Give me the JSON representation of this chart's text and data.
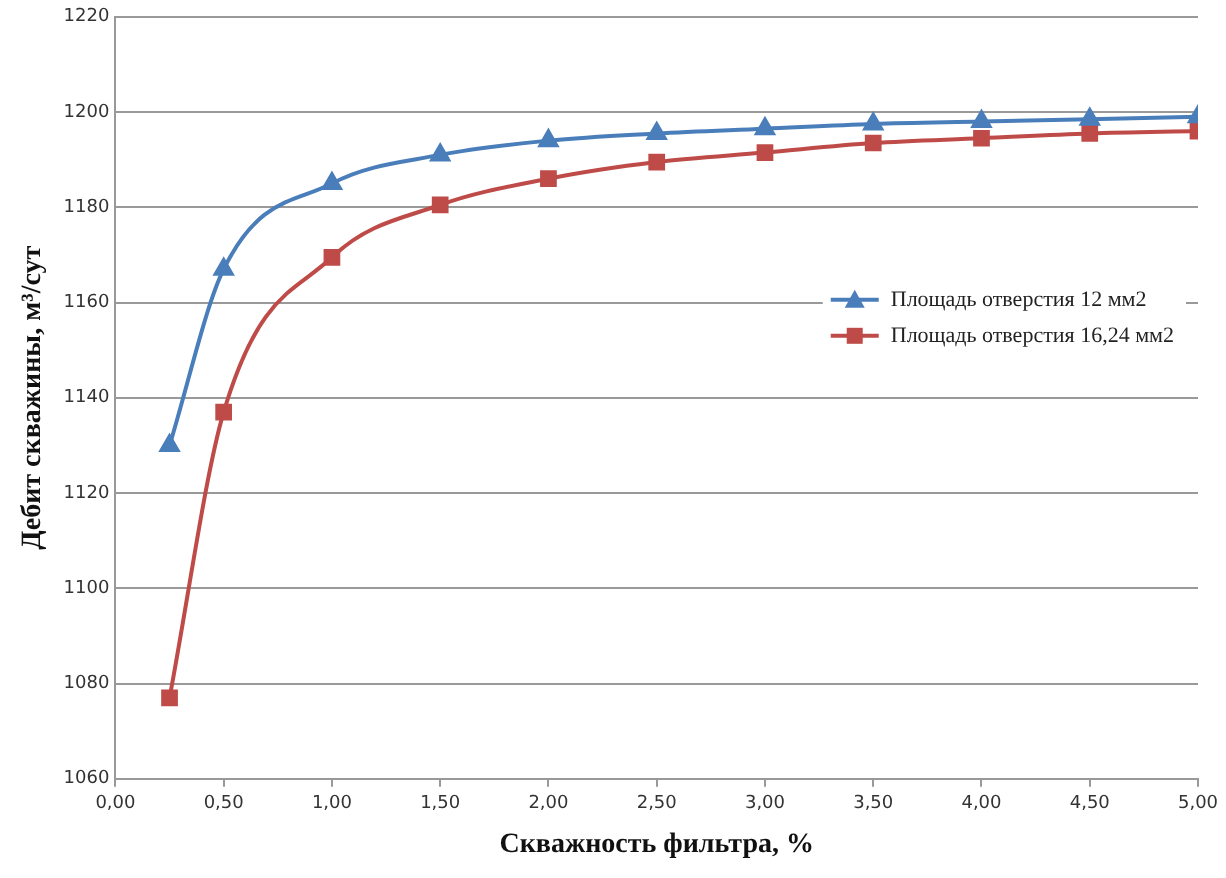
{
  "chart_data": {
    "type": "line",
    "xlabel": "Скважность фильтра, %",
    "ylabel": "Дебит скважины, м³/сут",
    "x": [
      0.25,
      0.5,
      1,
      1.5,
      2,
      2.5,
      3,
      3.5,
      4,
      4.5,
      5
    ],
    "series": [
      {
        "name": "Площадь отверстия 12 мм2",
        "color": "#4a7ebb",
        "marker": "triangle",
        "values": [
          1130,
          1167,
          1185,
          1191,
          1194,
          1195.5,
          1196.5,
          1197.5,
          1198,
          1198.5,
          1199
        ]
      },
      {
        "name": "Площадь отверстия 16,24 мм2",
        "color": "#be4b48",
        "marker": "square",
        "values": [
          1077,
          1137,
          1169.5,
          1180.5,
          1186,
          1189.5,
          1191.5,
          1193.5,
          1194.5,
          1195.5,
          1196
        ]
      }
    ],
    "xlim": [
      0,
      5
    ],
    "xticks": [
      {
        "value": 0,
        "label": "0,00"
      },
      {
        "value": 0.5,
        "label": "0,50"
      },
      {
        "value": 1,
        "label": "1,00"
      },
      {
        "value": 1.5,
        "label": "1,50"
      },
      {
        "value": 2,
        "label": "2,00"
      },
      {
        "value": 2.5,
        "label": "2,50"
      },
      {
        "value": 3,
        "label": "3,00"
      },
      {
        "value": 3.5,
        "label": "3,50"
      },
      {
        "value": 4,
        "label": "4,00"
      },
      {
        "value": 4.5,
        "label": "4,50"
      },
      {
        "value": 5,
        "label": "5,00"
      }
    ],
    "ylim": [
      1060,
      1220
    ],
    "yticks": [
      1060,
      1080,
      1100,
      1120,
      1140,
      1160,
      1180,
      1200,
      1220
    ],
    "grid": "y",
    "legend": "right",
    "line_style": "solid"
  }
}
